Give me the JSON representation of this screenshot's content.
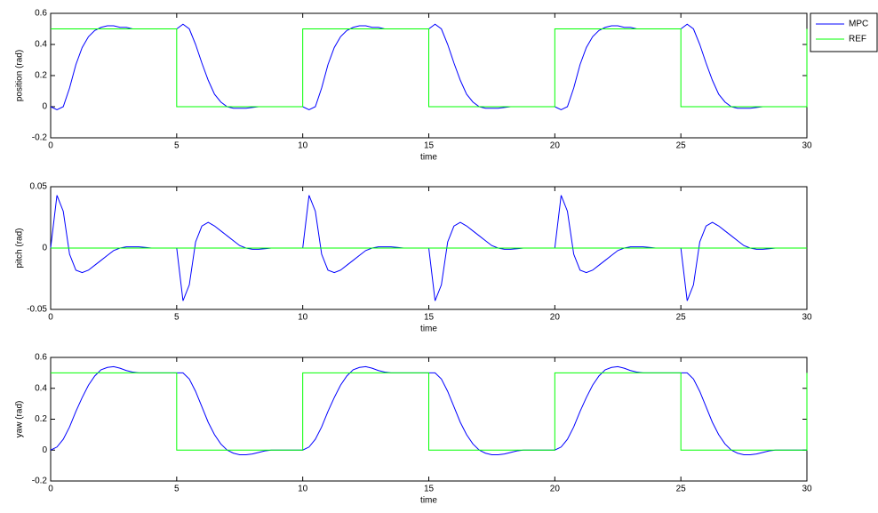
{
  "chart_data": [
    {
      "type": "line",
      "ylabel": "position (rad)",
      "xlabel": "time",
      "x": [
        0,
        0.25,
        0.5,
        0.75,
        1,
        1.25,
        1.5,
        1.75,
        2,
        2.25,
        2.5,
        2.75,
        3,
        3.25,
        3.5,
        3.75,
        4,
        4.25,
        4.5,
        4.75,
        5,
        5.25,
        5.5,
        5.75,
        6,
        6.25,
        6.5,
        6.75,
        7,
        7.25,
        7.5,
        7.75,
        8,
        8.25,
        8.5,
        8.75,
        9,
        9.25,
        9.5,
        9.75,
        10,
        10.25,
        10.5,
        10.75,
        11,
        11.25,
        11.5,
        11.75,
        12,
        12.25,
        12.5,
        12.75,
        13,
        13.25,
        13.5,
        13.75,
        14,
        14.25,
        14.5,
        14.75,
        15,
        15.25,
        15.5,
        15.75,
        16,
        16.25,
        16.5,
        16.75,
        17,
        17.25,
        17.5,
        17.75,
        18,
        18.25,
        18.5,
        18.75,
        19,
        19.25,
        19.5,
        19.75,
        20,
        20.25,
        20.5,
        20.75,
        21,
        21.25,
        21.5,
        21.75,
        22,
        22.25,
        22.5,
        22.75,
        23,
        23.25,
        23.5,
        23.75,
        24,
        24.25,
        24.5,
        24.75,
        25,
        25.25,
        25.5,
        25.75,
        26,
        26.25,
        26.5,
        26.75,
        27,
        27.25,
        27.5,
        27.75,
        28,
        28.25,
        28.5,
        28.75,
        29,
        29.25,
        29.5,
        29.75,
        30
      ],
      "series": [
        {
          "name": "MPC",
          "color": "#0000ff",
          "values": [
            0,
            -0.02,
            0,
            0.12,
            0.27,
            0.38,
            0.45,
            0.49,
            0.51,
            0.52,
            0.52,
            0.51,
            0.51,
            0.5,
            0.5,
            0.5,
            0.5,
            0.5,
            0.5,
            0.5,
            0.5,
            0.53,
            0.5,
            0.4,
            0.28,
            0.17,
            0.08,
            0.03,
            0,
            -0.01,
            -0.01,
            -0.01,
            -0.005,
            0,
            0,
            0,
            0,
            0,
            0,
            0,
            0,
            -0.02,
            0,
            0.12,
            0.27,
            0.38,
            0.45,
            0.49,
            0.51,
            0.52,
            0.52,
            0.51,
            0.51,
            0.5,
            0.5,
            0.5,
            0.5,
            0.5,
            0.5,
            0.5,
            0.5,
            0.53,
            0.5,
            0.4,
            0.28,
            0.17,
            0.08,
            0.03,
            0,
            -0.01,
            -0.01,
            -0.01,
            -0.005,
            0,
            0,
            0,
            0,
            0,
            0,
            0,
            0,
            -0.02,
            0,
            0.12,
            0.27,
            0.38,
            0.45,
            0.49,
            0.51,
            0.52,
            0.52,
            0.51,
            0.51,
            0.5,
            0.5,
            0.5,
            0.5,
            0.5,
            0.5,
            0.5,
            0.5,
            0.53,
            0.5,
            0.4,
            0.28,
            0.17,
            0.08,
            0.03,
            0,
            -0.01,
            -0.01,
            -0.01,
            -0.005,
            0,
            0,
            0,
            0,
            0,
            0,
            0,
            0
          ]
        },
        {
          "name": "REF",
          "color": "#00ff00",
          "x": [
            0,
            5,
            5,
            10,
            10,
            15,
            15,
            20,
            20,
            25,
            25,
            30,
            30
          ],
          "values": [
            0.5,
            0.5,
            0,
            0,
            0.5,
            0.5,
            0,
            0,
            0.5,
            0.5,
            0,
            0,
            0.5
          ]
        }
      ],
      "xlim": [
        0,
        30
      ],
      "xticks": [
        0,
        5,
        10,
        15,
        20,
        25,
        30
      ],
      "ylim": [
        -0.2,
        0.6
      ],
      "yticks": [
        -0.2,
        0,
        0.2,
        0.4,
        0.6
      ],
      "legend": "outside"
    },
    {
      "type": "line",
      "ylabel": "pitch (rad)",
      "xlabel": "time",
      "x": [
        0,
        0.25,
        0.5,
        0.75,
        1,
        1.25,
        1.5,
        1.75,
        2,
        2.25,
        2.5,
        2.75,
        3,
        3.25,
        3.5,
        3.75,
        4,
        4.25,
        4.5,
        4.75,
        5,
        5.25,
        5.5,
        5.75,
        6,
        6.25,
        6.5,
        6.75,
        7,
        7.25,
        7.5,
        7.75,
        8,
        8.25,
        8.5,
        8.75,
        9,
        9.25,
        9.5,
        9.75,
        10,
        10.25,
        10.5,
        10.75,
        11,
        11.25,
        11.5,
        11.75,
        12,
        12.25,
        12.5,
        12.75,
        13,
        13.25,
        13.5,
        13.75,
        14,
        14.25,
        14.5,
        14.75,
        15,
        15.25,
        15.5,
        15.75,
        16,
        16.25,
        16.5,
        16.75,
        17,
        17.25,
        17.5,
        17.75,
        18,
        18.25,
        18.5,
        18.75,
        19,
        19.25,
        19.5,
        19.75,
        20,
        20.25,
        20.5,
        20.75,
        21,
        21.25,
        21.5,
        21.75,
        22,
        22.25,
        22.5,
        22.75,
        23,
        23.25,
        23.5,
        23.75,
        24,
        24.25,
        24.5,
        24.75,
        25,
        25.25,
        25.5,
        25.75,
        26,
        26.25,
        26.5,
        26.75,
        27,
        27.25,
        27.5,
        27.75,
        28,
        28.25,
        28.5,
        28.75,
        29,
        29.25,
        29.5,
        29.75,
        30
      ],
      "series": [
        {
          "name": "MPC",
          "color": "#0000ff",
          "values": [
            0,
            0.043,
            0.03,
            -0.005,
            -0.018,
            -0.02,
            -0.018,
            -0.014,
            -0.01,
            -0.006,
            -0.002,
            0,
            0.001,
            0.001,
            0.001,
            0.0005,
            0,
            0,
            0,
            0,
            0,
            -0.043,
            -0.03,
            0.005,
            0.018,
            0.021,
            0.018,
            0.014,
            0.01,
            0.006,
            0.002,
            0,
            -0.001,
            -0.001,
            -0.0005,
            0,
            0,
            0,
            0,
            0,
            0,
            0.043,
            0.03,
            -0.005,
            -0.018,
            -0.02,
            -0.018,
            -0.014,
            -0.01,
            -0.006,
            -0.002,
            0,
            0.001,
            0.001,
            0.001,
            0.0005,
            0,
            0,
            0,
            0,
            0,
            -0.043,
            -0.03,
            0.005,
            0.018,
            0.021,
            0.018,
            0.014,
            0.01,
            0.006,
            0.002,
            0,
            -0.001,
            -0.001,
            -0.0005,
            0,
            0,
            0,
            0,
            0,
            0,
            0.043,
            0.03,
            -0.005,
            -0.018,
            -0.02,
            -0.018,
            -0.014,
            -0.01,
            -0.006,
            -0.002,
            0,
            0.001,
            0.001,
            0.001,
            0.0005,
            0,
            0,
            0,
            0,
            0,
            -0.043,
            -0.03,
            0.005,
            0.018,
            0.021,
            0.018,
            0.014,
            0.01,
            0.006,
            0.002,
            0,
            -0.001,
            -0.001,
            -0.0005,
            0,
            0,
            0,
            0,
            0,
            0
          ]
        },
        {
          "name": "REF",
          "color": "#00ff00",
          "x": [
            0,
            30
          ],
          "values": [
            0,
            0
          ]
        }
      ],
      "xlim": [
        0,
        30
      ],
      "xticks": [
        0,
        5,
        10,
        15,
        20,
        25,
        30
      ],
      "ylim": [
        -0.05,
        0.05
      ],
      "yticks": [
        -0.05,
        0,
        0.05
      ]
    },
    {
      "type": "line",
      "ylabel": "yaw (rad)",
      "xlabel": "time",
      "x": [
        0,
        0.25,
        0.5,
        0.75,
        1,
        1.25,
        1.5,
        1.75,
        2,
        2.25,
        2.5,
        2.75,
        3,
        3.25,
        3.5,
        3.75,
        4,
        4.25,
        4.5,
        4.75,
        5,
        5.25,
        5.5,
        5.75,
        6,
        6.25,
        6.5,
        6.75,
        7,
        7.25,
        7.5,
        7.75,
        8,
        8.25,
        8.5,
        8.75,
        9,
        9.25,
        9.5,
        9.75,
        10,
        10.25,
        10.5,
        10.75,
        11,
        11.25,
        11.5,
        11.75,
        12,
        12.25,
        12.5,
        12.75,
        13,
        13.25,
        13.5,
        13.75,
        14,
        14.25,
        14.5,
        14.75,
        15,
        15.25,
        15.5,
        15.75,
        16,
        16.25,
        16.5,
        16.75,
        17,
        17.25,
        17.5,
        17.75,
        18,
        18.25,
        18.5,
        18.75,
        19,
        19.25,
        19.5,
        19.75,
        20,
        20.25,
        20.5,
        20.75,
        21,
        21.25,
        21.5,
        21.75,
        22,
        22.25,
        22.5,
        22.75,
        23,
        23.25,
        23.5,
        23.75,
        24,
        24.25,
        24.5,
        24.75,
        25,
        25.25,
        25.5,
        25.75,
        26,
        26.25,
        26.5,
        26.75,
        27,
        27.25,
        27.5,
        27.75,
        28,
        28.25,
        28.5,
        28.75,
        29,
        29.25,
        29.5,
        29.75,
        30
      ],
      "series": [
        {
          "name": "MPC",
          "color": "#0000ff",
          "values": [
            0,
            0.02,
            0.07,
            0.15,
            0.25,
            0.34,
            0.42,
            0.48,
            0.52,
            0.535,
            0.54,
            0.53,
            0.515,
            0.505,
            0.5,
            0.5,
            0.5,
            0.5,
            0.5,
            0.5,
            0.5,
            0.5,
            0.46,
            0.38,
            0.28,
            0.18,
            0.1,
            0.04,
            0,
            -0.02,
            -0.03,
            -0.03,
            -0.025,
            -0.015,
            -0.005,
            0,
            0,
            0,
            0,
            0,
            0,
            0.02,
            0.07,
            0.15,
            0.25,
            0.34,
            0.42,
            0.48,
            0.52,
            0.535,
            0.54,
            0.53,
            0.515,
            0.505,
            0.5,
            0.5,
            0.5,
            0.5,
            0.5,
            0.5,
            0.5,
            0.5,
            0.46,
            0.38,
            0.28,
            0.18,
            0.1,
            0.04,
            0,
            -0.02,
            -0.03,
            -0.03,
            -0.025,
            -0.015,
            -0.005,
            0,
            0,
            0,
            0,
            0,
            0,
            0.02,
            0.07,
            0.15,
            0.25,
            0.34,
            0.42,
            0.48,
            0.52,
            0.535,
            0.54,
            0.53,
            0.515,
            0.505,
            0.5,
            0.5,
            0.5,
            0.5,
            0.5,
            0.5,
            0.5,
            0.5,
            0.46,
            0.38,
            0.28,
            0.18,
            0.1,
            0.04,
            0,
            -0.02,
            -0.03,
            -0.03,
            -0.025,
            -0.015,
            -0.005,
            0,
            0,
            0,
            0,
            0,
            0
          ]
        },
        {
          "name": "REF",
          "color": "#00ff00",
          "x": [
            0,
            5,
            5,
            10,
            10,
            15,
            15,
            20,
            20,
            25,
            25,
            30,
            30
          ],
          "values": [
            0.5,
            0.5,
            0,
            0,
            0.5,
            0.5,
            0,
            0,
            0.5,
            0.5,
            0,
            0,
            0.5
          ]
        }
      ],
      "xlim": [
        0,
        30
      ],
      "xticks": [
        0,
        5,
        10,
        15,
        20,
        25,
        30
      ],
      "ylim": [
        -0.2,
        0.6
      ],
      "yticks": [
        -0.2,
        0,
        0.2,
        0.4,
        0.6
      ]
    }
  ]
}
